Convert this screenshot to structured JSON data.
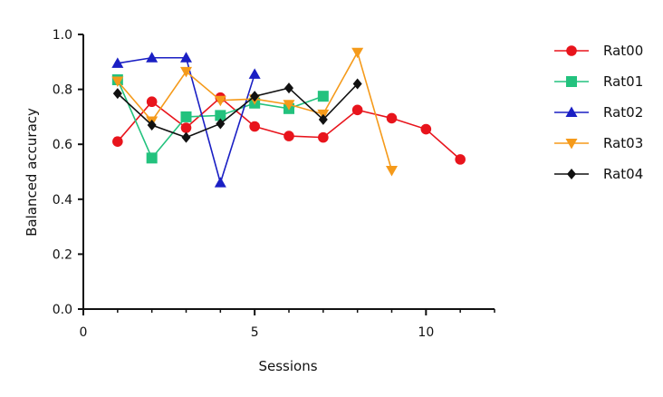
{
  "chart_data": {
    "type": "line",
    "title": "",
    "xlabel": "Sessions",
    "ylabel": "Balanced accuracy",
    "xlim": [
      0,
      12
    ],
    "ylim": [
      0,
      1.0
    ],
    "x_ticks": [
      0,
      5,
      10
    ],
    "x_tick_labels": [
      "0",
      "5",
      "10"
    ],
    "y_ticks": [
      0.0,
      0.2,
      0.4,
      0.6,
      0.8,
      1.0
    ],
    "y_tick_labels": [
      "0.0",
      "0.2",
      "0.4",
      "0.6",
      "0.8",
      "1.0"
    ],
    "grid": false,
    "legend_position": "right",
    "series": [
      {
        "name": "Rat00",
        "color": "#e8141c",
        "marker": "circle",
        "x": [
          1,
          2,
          3,
          4,
          5,
          6,
          7,
          8,
          9,
          10,
          11
        ],
        "y": [
          0.61,
          0.755,
          0.66,
          0.77,
          0.665,
          0.63,
          0.625,
          0.725,
          0.695,
          0.655,
          0.545
        ]
      },
      {
        "name": "Rat01",
        "color": "#23c27e",
        "marker": "square",
        "x": [
          1,
          2,
          3,
          4,
          5,
          6,
          7
        ],
        "y": [
          0.835,
          0.55,
          0.7,
          0.705,
          0.75,
          0.73,
          0.775
        ]
      },
      {
        "name": "Rat02",
        "color": "#1a1fc4",
        "marker": "triangle-up",
        "x": [
          1,
          2,
          3,
          4,
          5
        ],
        "y": [
          0.895,
          0.915,
          0.915,
          0.46,
          0.855
        ]
      },
      {
        "name": "Rat03",
        "color": "#f59a1a",
        "marker": "triangle-down",
        "x": [
          1,
          2,
          3,
          4,
          5,
          6,
          7,
          8,
          9
        ],
        "y": [
          0.83,
          0.685,
          0.865,
          0.76,
          0.765,
          0.745,
          0.71,
          0.935,
          0.505
        ]
      },
      {
        "name": "Rat04",
        "color": "#111111",
        "marker": "diamond",
        "x": [
          1,
          2,
          3,
          4,
          5,
          6,
          7,
          8
        ],
        "y": [
          0.785,
          0.67,
          0.625,
          0.675,
          0.775,
          0.805,
          0.69,
          0.82
        ]
      }
    ]
  }
}
